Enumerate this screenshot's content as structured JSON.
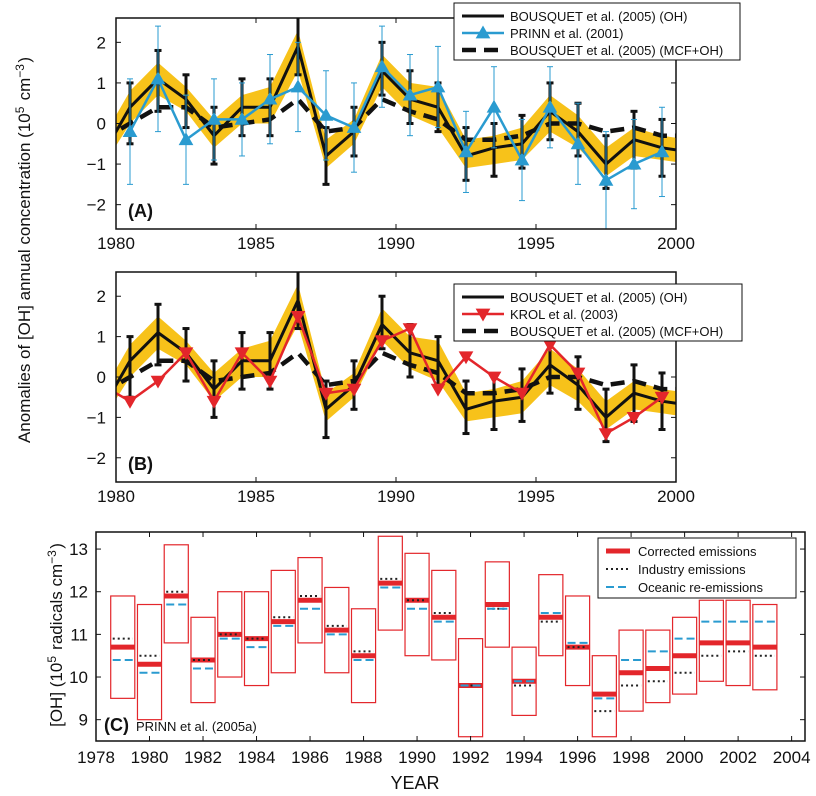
{
  "colors": {
    "band": "#f7c21a",
    "black": "#111111",
    "prinn": "#2a9bd0",
    "krol": "#e3262b",
    "corrected": "#e3262b",
    "industry": "#222222",
    "oceanic": "#2a9bd0"
  },
  "shared_ylabel": "Anomalies of [OH] annual concentration (10<sup>5</sup> cm<sup>−3</sup>)",
  "chart_data": [
    {
      "type": "line",
      "panel_label": "(A)",
      "xlim": [
        1980,
        2000
      ],
      "ylim": [
        -2.6,
        2.6
      ],
      "xticks": [
        "1980",
        "1985",
        "1990",
        "1995",
        "2000"
      ],
      "yticks": [
        "2",
        "1",
        "0",
        "−1",
        "−2"
      ],
      "legend_position": "top-right",
      "legend": [
        {
          "label": "BOUSQUET et al. (2005) (OH)",
          "style": "solid-black"
        },
        {
          "label": "PRINN et al. (2001)",
          "style": "blue-triangle-up"
        },
        {
          "label": "BOUSQUET et al. (2005) (MCF+OH)",
          "style": "dashed-black"
        }
      ],
      "x": [
        1979.5,
        1980.5,
        1981.5,
        1982.5,
        1983.5,
        1984.5,
        1985.5,
        1986.5,
        1987.5,
        1988.5,
        1989.5,
        1990.5,
        1991.5,
        1992.5,
        1993.5,
        1994.5,
        1995.5,
        1996.5,
        1997.5,
        1998.5,
        1999.5,
        2000.5
      ],
      "series": [
        {
          "name": "BOUSQUET et al. (2005) (OH)",
          "values": [
            -0.8,
            0.4,
            1.1,
            0.6,
            -0.3,
            0.4,
            0.4,
            1.9,
            -0.8,
            -0.2,
            1.3,
            0.6,
            0.4,
            -0.8,
            -0.6,
            -0.5,
            0.3,
            -0.2,
            -1.0,
            -0.4,
            -0.6,
            -0.7
          ],
          "err_low": [
            -1.5,
            -0.5,
            0.3,
            -0.1,
            -1.0,
            -0.3,
            -0.3,
            1.2,
            -1.5,
            -0.8,
            0.7,
            0.0,
            -0.2,
            -1.4,
            -1.3,
            -1.1,
            -0.4,
            -0.8,
            -1.6,
            -1.1,
            -1.3,
            -1.4
          ],
          "err_high": [
            -0.1,
            1.0,
            1.8,
            1.2,
            0.4,
            1.1,
            1.1,
            2.7,
            -0.1,
            0.4,
            2.0,
            1.3,
            1.0,
            -0.1,
            0.0,
            0.2,
            1.0,
            0.5,
            -0.3,
            0.3,
            0.1,
            0.0
          ],
          "band_low": [
            -1.1,
            0.0,
            0.7,
            0.3,
            -0.6,
            0.0,
            0.0,
            1.3,
            -1.1,
            -0.5,
            0.9,
            0.2,
            -0.1,
            -1.1,
            -1.0,
            -0.9,
            -0.2,
            -0.6,
            -1.3,
            -0.8,
            -0.9,
            -1.0
          ],
          "band_high": [
            -0.4,
            0.8,
            1.5,
            0.9,
            0.1,
            0.7,
            0.9,
            2.3,
            -0.4,
            0.1,
            1.7,
            1.0,
            0.9,
            -0.4,
            -0.3,
            -0.1,
            0.7,
            0.2,
            -0.6,
            -0.1,
            -0.3,
            -0.4
          ]
        },
        {
          "name": "PRINN et al. (2001)",
          "x": [
            1980.5,
            1981.5,
            1982.5,
            1983.5,
            1984.5,
            1985.5,
            1986.5,
            1987.5,
            1988.5,
            1989.5,
            1990.5,
            1991.5,
            1992.5,
            1993.5,
            1994.5,
            1995.5,
            1996.5,
            1997.5,
            1998.5,
            1999.5
          ],
          "values": [
            -0.2,
            1.1,
            -0.4,
            0.1,
            0.1,
            0.6,
            0.9,
            0.2,
            -0.1,
            1.4,
            0.7,
            0.9,
            -0.7,
            0.4,
            -0.9,
            0.4,
            -0.5,
            -1.4,
            -1.0,
            -0.7
          ],
          "err_low": [
            -1.5,
            -0.2,
            -1.5,
            -0.9,
            -0.8,
            -0.5,
            -0.2,
            -0.9,
            -1.2,
            0.4,
            -0.3,
            -0.1,
            -1.7,
            -0.6,
            -1.9,
            -0.6,
            -1.5,
            -2.6,
            -2.1,
            -1.8
          ],
          "err_high": [
            1.1,
            2.4,
            0.7,
            1.1,
            1.0,
            1.7,
            2.0,
            1.3,
            1.0,
            2.4,
            1.7,
            1.9,
            0.3,
            1.4,
            0.1,
            1.4,
            0.5,
            -0.2,
            0.1,
            0.4
          ]
        },
        {
          "name": "BOUSQUET et al. (2005) (MCF+OH)",
          "values": [
            -0.4,
            0.0,
            0.4,
            0.4,
            -0.1,
            0.0,
            0.1,
            0.6,
            -0.2,
            -0.1,
            0.6,
            0.3,
            0.1,
            -0.4,
            -0.4,
            -0.3,
            0.0,
            0.0,
            -0.2,
            -0.1,
            -0.3,
            -0.3
          ]
        }
      ]
    },
    {
      "type": "line",
      "panel_label": "(B)",
      "xlim": [
        1980,
        2000
      ],
      "ylim": [
        -2.6,
        2.6
      ],
      "xticks": [
        "1980",
        "1985",
        "1990",
        "1995",
        "2000"
      ],
      "yticks": [
        "2",
        "1",
        "0",
        "−1",
        "−2"
      ],
      "legend_position": "top-right",
      "legend": [
        {
          "label": "BOUSQUET et al. (2005) (OH)",
          "style": "solid-black"
        },
        {
          "label": "KROL et al. (2003)",
          "style": "red-triangle-down"
        },
        {
          "label": "BOUSQUET et al. (2005) (MCF+OH)",
          "style": "dashed-black"
        }
      ],
      "x": [
        1979.5,
        1980.5,
        1981.5,
        1982.5,
        1983.5,
        1984.5,
        1985.5,
        1986.5,
        1987.5,
        1988.5,
        1989.5,
        1990.5,
        1991.5,
        1992.5,
        1993.5,
        1994.5,
        1995.5,
        1996.5,
        1997.5,
        1998.5,
        1999.5,
        2000.5
      ],
      "series": [
        {
          "name": "BOUSQUET et al. (2005) (OH)",
          "values": [
            -0.8,
            0.4,
            1.1,
            0.6,
            -0.3,
            0.4,
            0.4,
            1.9,
            -0.8,
            -0.2,
            1.3,
            0.6,
            0.4,
            -0.8,
            -0.6,
            -0.5,
            0.3,
            -0.2,
            -1.0,
            -0.4,
            -0.6,
            -0.7
          ],
          "err_low": [
            -1.5,
            -0.5,
            0.3,
            -0.1,
            -1.0,
            -0.3,
            -0.3,
            1.2,
            -1.5,
            -0.8,
            0.7,
            0.0,
            -0.2,
            -1.4,
            -1.3,
            -1.1,
            -0.4,
            -0.8,
            -1.6,
            -1.1,
            -1.3,
            -1.4
          ],
          "err_high": [
            -0.1,
            1.0,
            1.8,
            1.2,
            0.4,
            1.1,
            1.1,
            2.7,
            -0.1,
            0.4,
            2.0,
            1.3,
            1.0,
            -0.1,
            0.0,
            0.2,
            1.0,
            0.5,
            -0.3,
            0.3,
            0.1,
            0.0
          ],
          "band_low": [
            -1.1,
            0.0,
            0.7,
            0.3,
            -0.6,
            0.0,
            0.0,
            1.3,
            -1.1,
            -0.5,
            0.9,
            0.2,
            -0.1,
            -1.1,
            -1.0,
            -0.9,
            -0.2,
            -0.6,
            -1.3,
            -0.8,
            -0.9,
            -1.0
          ],
          "band_high": [
            -0.4,
            0.8,
            1.5,
            0.9,
            0.1,
            0.7,
            0.9,
            2.3,
            -0.4,
            0.1,
            1.7,
            1.0,
            0.9,
            -0.4,
            -0.3,
            -0.1,
            0.7,
            0.2,
            -0.6,
            -0.1,
            -0.3,
            -0.4
          ]
        },
        {
          "name": "KROL et al. (2003)",
          "x": [
            1979.5,
            1980.5,
            1981.5,
            1982.5,
            1983.5,
            1984.5,
            1985.5,
            1986.5,
            1987.5,
            1988.5,
            1989.5,
            1990.5,
            1991.5,
            1992.5,
            1993.5,
            1994.5,
            1995.5,
            1996.5,
            1997.5,
            1998.5,
            1999.5
          ],
          "values": [
            -0.2,
            -0.6,
            -0.1,
            0.6,
            -0.6,
            0.6,
            -0.1,
            1.5,
            -0.4,
            -0.3,
            0.9,
            1.2,
            -0.3,
            0.5,
            0.0,
            -0.4,
            0.8,
            0.1,
            -1.4,
            -1.0,
            -0.5
          ]
        },
        {
          "name": "BOUSQUET et al. (2005) (MCF+OH)",
          "values": [
            -0.4,
            0.0,
            0.4,
            0.4,
            -0.1,
            0.0,
            0.1,
            0.6,
            -0.2,
            -0.1,
            0.6,
            0.3,
            0.1,
            -0.4,
            -0.4,
            -0.3,
            0.0,
            0.0,
            -0.2,
            -0.1,
            -0.3,
            -0.3
          ]
        }
      ]
    },
    {
      "type": "bar",
      "panel_label": "(C)",
      "annotation": "PRINN et al. (2005a)",
      "xlabel": "YEAR",
      "ylabel": "[OH] (10<sup>5</sup> radicals cm<sup>−3</sup>)",
      "xlim": [
        1978,
        2004.5
      ],
      "ylim": [
        8.5,
        13.4
      ],
      "xticks": [
        "1978",
        "1980",
        "1982",
        "1984",
        "1986",
        "1988",
        "1990",
        "1992",
        "1994",
        "1996",
        "1998",
        "2000",
        "2002",
        "2004"
      ],
      "yticks": [
        "13",
        "12",
        "11",
        "10",
        "9"
      ],
      "legend_position": "top-right",
      "legend": [
        {
          "label": "Corrected emissions",
          "style": "thick-red"
        },
        {
          "label": "Industry emissions",
          "style": "dotted-black"
        },
        {
          "label": "Oceanic re-emissions",
          "style": "dashed-blue"
        }
      ],
      "years": [
        1979,
        1980,
        1981,
        1982,
        1983,
        1984,
        1985,
        1986,
        1987,
        1988,
        1989,
        1990,
        1991,
        1992,
        1993,
        1994,
        1995,
        1996,
        1997,
        1998,
        1999,
        2000,
        2001,
        2002,
        2003
      ],
      "box_low": [
        9.5,
        9.0,
        10.8,
        9.4,
        10.0,
        9.8,
        10.1,
        10.8,
        10.1,
        9.4,
        11.1,
        10.5,
        10.4,
        8.6,
        10.7,
        9.1,
        10.5,
        9.8,
        8.6,
        9.2,
        9.4,
        9.6,
        9.9,
        9.8,
        9.7
      ],
      "box_high": [
        11.9,
        11.7,
        13.1,
        11.4,
        12.0,
        12.0,
        12.5,
        12.8,
        12.1,
        11.6,
        13.3,
        12.9,
        12.5,
        10.9,
        12.7,
        10.7,
        12.4,
        11.9,
        10.5,
        11.1,
        11.1,
        11.4,
        11.8,
        11.8,
        11.7
      ],
      "series": [
        {
          "name": "Corrected emissions",
          "values": [
            10.7,
            10.3,
            11.9,
            10.4,
            11.0,
            10.9,
            11.3,
            11.8,
            11.1,
            10.5,
            12.2,
            11.8,
            11.4,
            9.8,
            11.7,
            9.9,
            11.4,
            10.7,
            9.6,
            10.1,
            10.2,
            10.5,
            10.8,
            10.8,
            10.7
          ]
        },
        {
          "name": "Industry emissions",
          "values": [
            10.9,
            10.5,
            12.0,
            10.4,
            11.0,
            10.9,
            11.4,
            11.9,
            11.2,
            10.6,
            12.3,
            11.8,
            11.5,
            9.8,
            11.6,
            9.8,
            11.3,
            10.7,
            9.2,
            9.8,
            9.9,
            10.1,
            10.5,
            10.6,
            10.5
          ]
        },
        {
          "name": "Oceanic re-emissions",
          "values": [
            10.4,
            10.1,
            11.7,
            10.2,
            10.9,
            10.7,
            11.2,
            11.6,
            11.0,
            10.4,
            12.1,
            11.6,
            11.3,
            9.8,
            11.6,
            9.9,
            11.5,
            10.8,
            9.5,
            10.4,
            10.6,
            10.9,
            11.3,
            11.3,
            11.3
          ]
        }
      ]
    }
  ]
}
